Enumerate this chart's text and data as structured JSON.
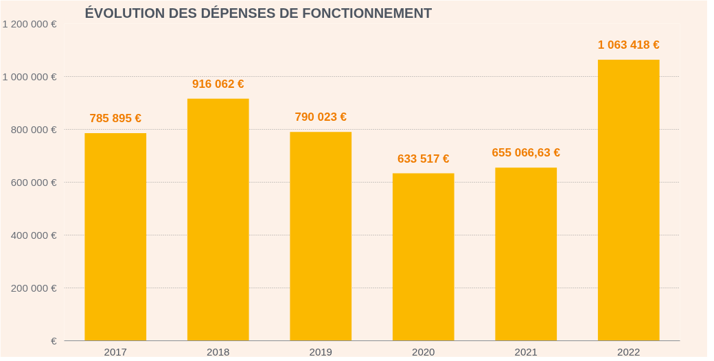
{
  "chart_data": {
    "type": "bar",
    "title": "ÉVOLUTION DES DÉPENSES DE FONCTIONNEMENT",
    "categories": [
      "2017",
      "2018",
      "2019",
      "2020",
      "2021",
      "2022"
    ],
    "values": [
      785895,
      916062,
      790023,
      633517,
      655066.63,
      1063418
    ],
    "color": "#fbb900",
    "value_labels": [
      "785 895 €",
      "916 062 €",
      "790 023 €",
      "633 517 €",
      "655 066,63 €",
      "1 063 418 €"
    ],
    "ylim": [
      0,
      1200000
    ],
    "yticks": [
      {
        "value": 0,
        "label": "€"
      },
      {
        "value": 200000,
        "label": "200 000 €"
      },
      {
        "value": 400000,
        "label": "400 000 €"
      },
      {
        "value": 600000,
        "label": "600 000 €"
      },
      {
        "value": 800000,
        "label": "800 000 €"
      },
      {
        "value": 1000000,
        "label": "1 000 000 €"
      },
      {
        "value": 1200000,
        "label": "1 200 000 €"
      }
    ],
    "grid": "y"
  }
}
